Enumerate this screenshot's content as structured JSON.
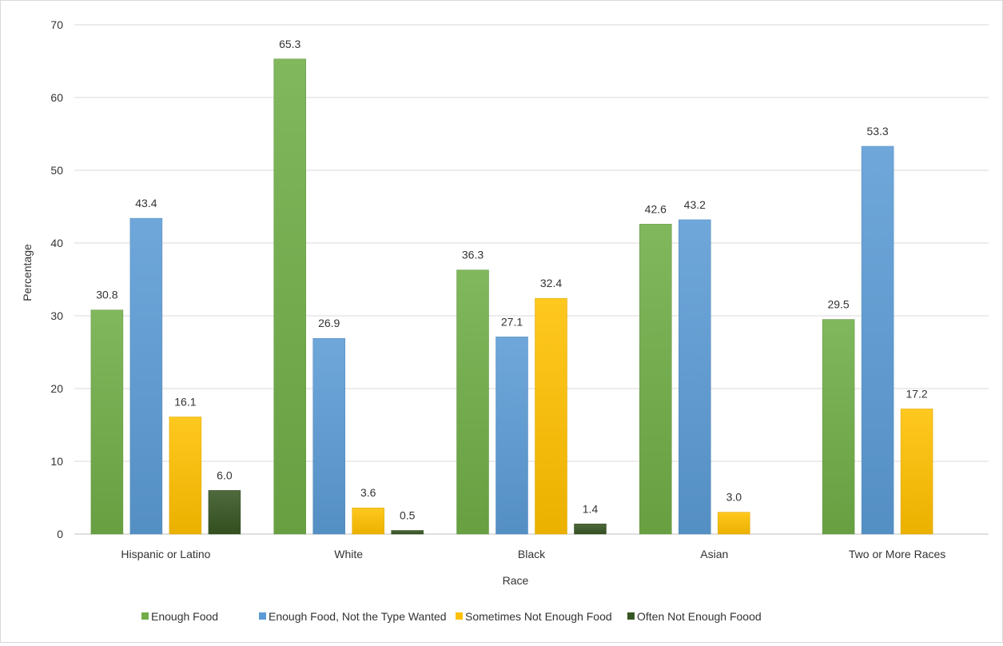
{
  "chart_data": {
    "type": "bar",
    "title": "",
    "xlabel": "Race",
    "ylabel": "Percentage",
    "ylim": [
      0,
      70
    ],
    "yticks": [
      0,
      10,
      20,
      30,
      40,
      50,
      60,
      70
    ],
    "grid": true,
    "legend_position": "bottom",
    "categories": [
      "Hispanic or Latino",
      "White",
      "Black",
      "Asian",
      "Two or More Races"
    ],
    "series": [
      {
        "name": "Enough Food",
        "color": "#70ad47",
        "values": [
          30.8,
          65.3,
          36.3,
          42.6,
          29.5
        ]
      },
      {
        "name": "Enough Food, Not the Type Wanted",
        "color": "#5b9bd5",
        "values": [
          43.4,
          26.9,
          27.1,
          43.2,
          53.3
        ]
      },
      {
        "name": "Sometimes Not Enough Food",
        "color": "#ffc000",
        "values": [
          16.1,
          3.6,
          32.4,
          3.0,
          17.2
        ]
      },
      {
        "name": "Often Not Enough Foood",
        "color": "#375623",
        "values": [
          6.0,
          0.5,
          1.4,
          null,
          null
        ]
      }
    ]
  }
}
